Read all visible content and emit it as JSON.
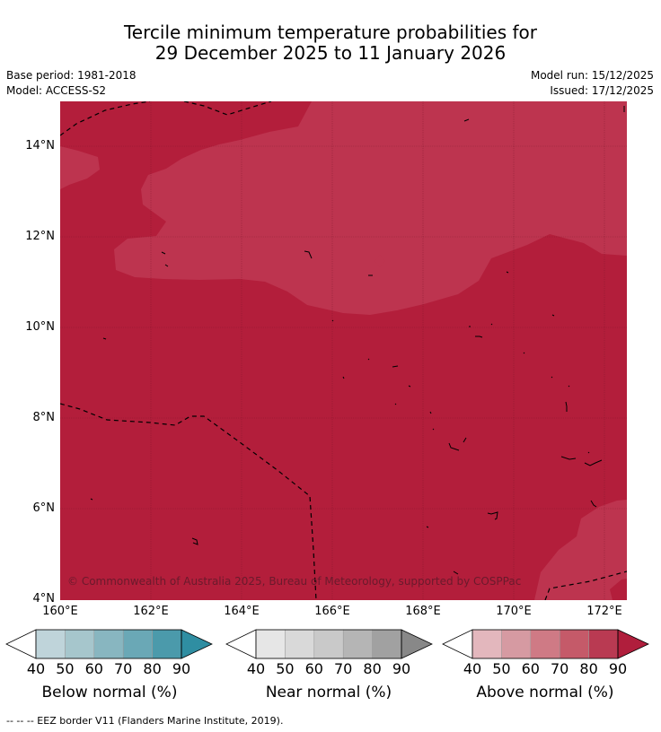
{
  "title": {
    "line1": "Tercile minimum temperature probabilities for",
    "line2": "29 December 2025 to 11 January 2026"
  },
  "meta": {
    "base_period": "Base period: 1981-2018",
    "model": "Model: ACCESS-S2",
    "model_run": "Model run: 15/12/2025",
    "issued": "Issued: 17/12/2025"
  },
  "map": {
    "copyright": "© Commonwealth of Australia 2025, Bureau of Meteorology, supported by COSPPac",
    "lat_labels": [
      "14°N",
      "12°N",
      "10°N",
      "8°N",
      "6°N",
      "4°N"
    ],
    "lon_labels": [
      "160°E",
      "162°E",
      "164°E",
      "166°E",
      "168°E",
      "170°E",
      "172°E"
    ],
    "colors": {
      "above_80_90": "#b31e3b",
      "above_70_80": "#bd344f"
    }
  },
  "legend": {
    "ticks": [
      "40",
      "50",
      "60",
      "70",
      "80",
      "90"
    ],
    "below": {
      "title": "Below normal (%)",
      "colors": [
        "#ffffff",
        "#bfd4da",
        "#a6c6cc",
        "#88b6c0",
        "#6aa8b6",
        "#4b9aab",
        "#2f8ea2"
      ]
    },
    "near": {
      "title": "Near normal (%)",
      "colors": [
        "#ffffff",
        "#e6e6e6",
        "#d9d9d9",
        "#c9c9c9",
        "#b5b5b5",
        "#a1a1a1",
        "#888888"
      ]
    },
    "above": {
      "title": "Above normal (%)",
      "colors": [
        "#ffffff",
        "#e3b7bd",
        "#d69aa2",
        "#cf7a85",
        "#c55a69",
        "#b93a52",
        "#b01e3c"
      ]
    }
  },
  "footnote": "--  --  -- EEZ border V11 (Flanders Marine Institute, 2019)."
}
